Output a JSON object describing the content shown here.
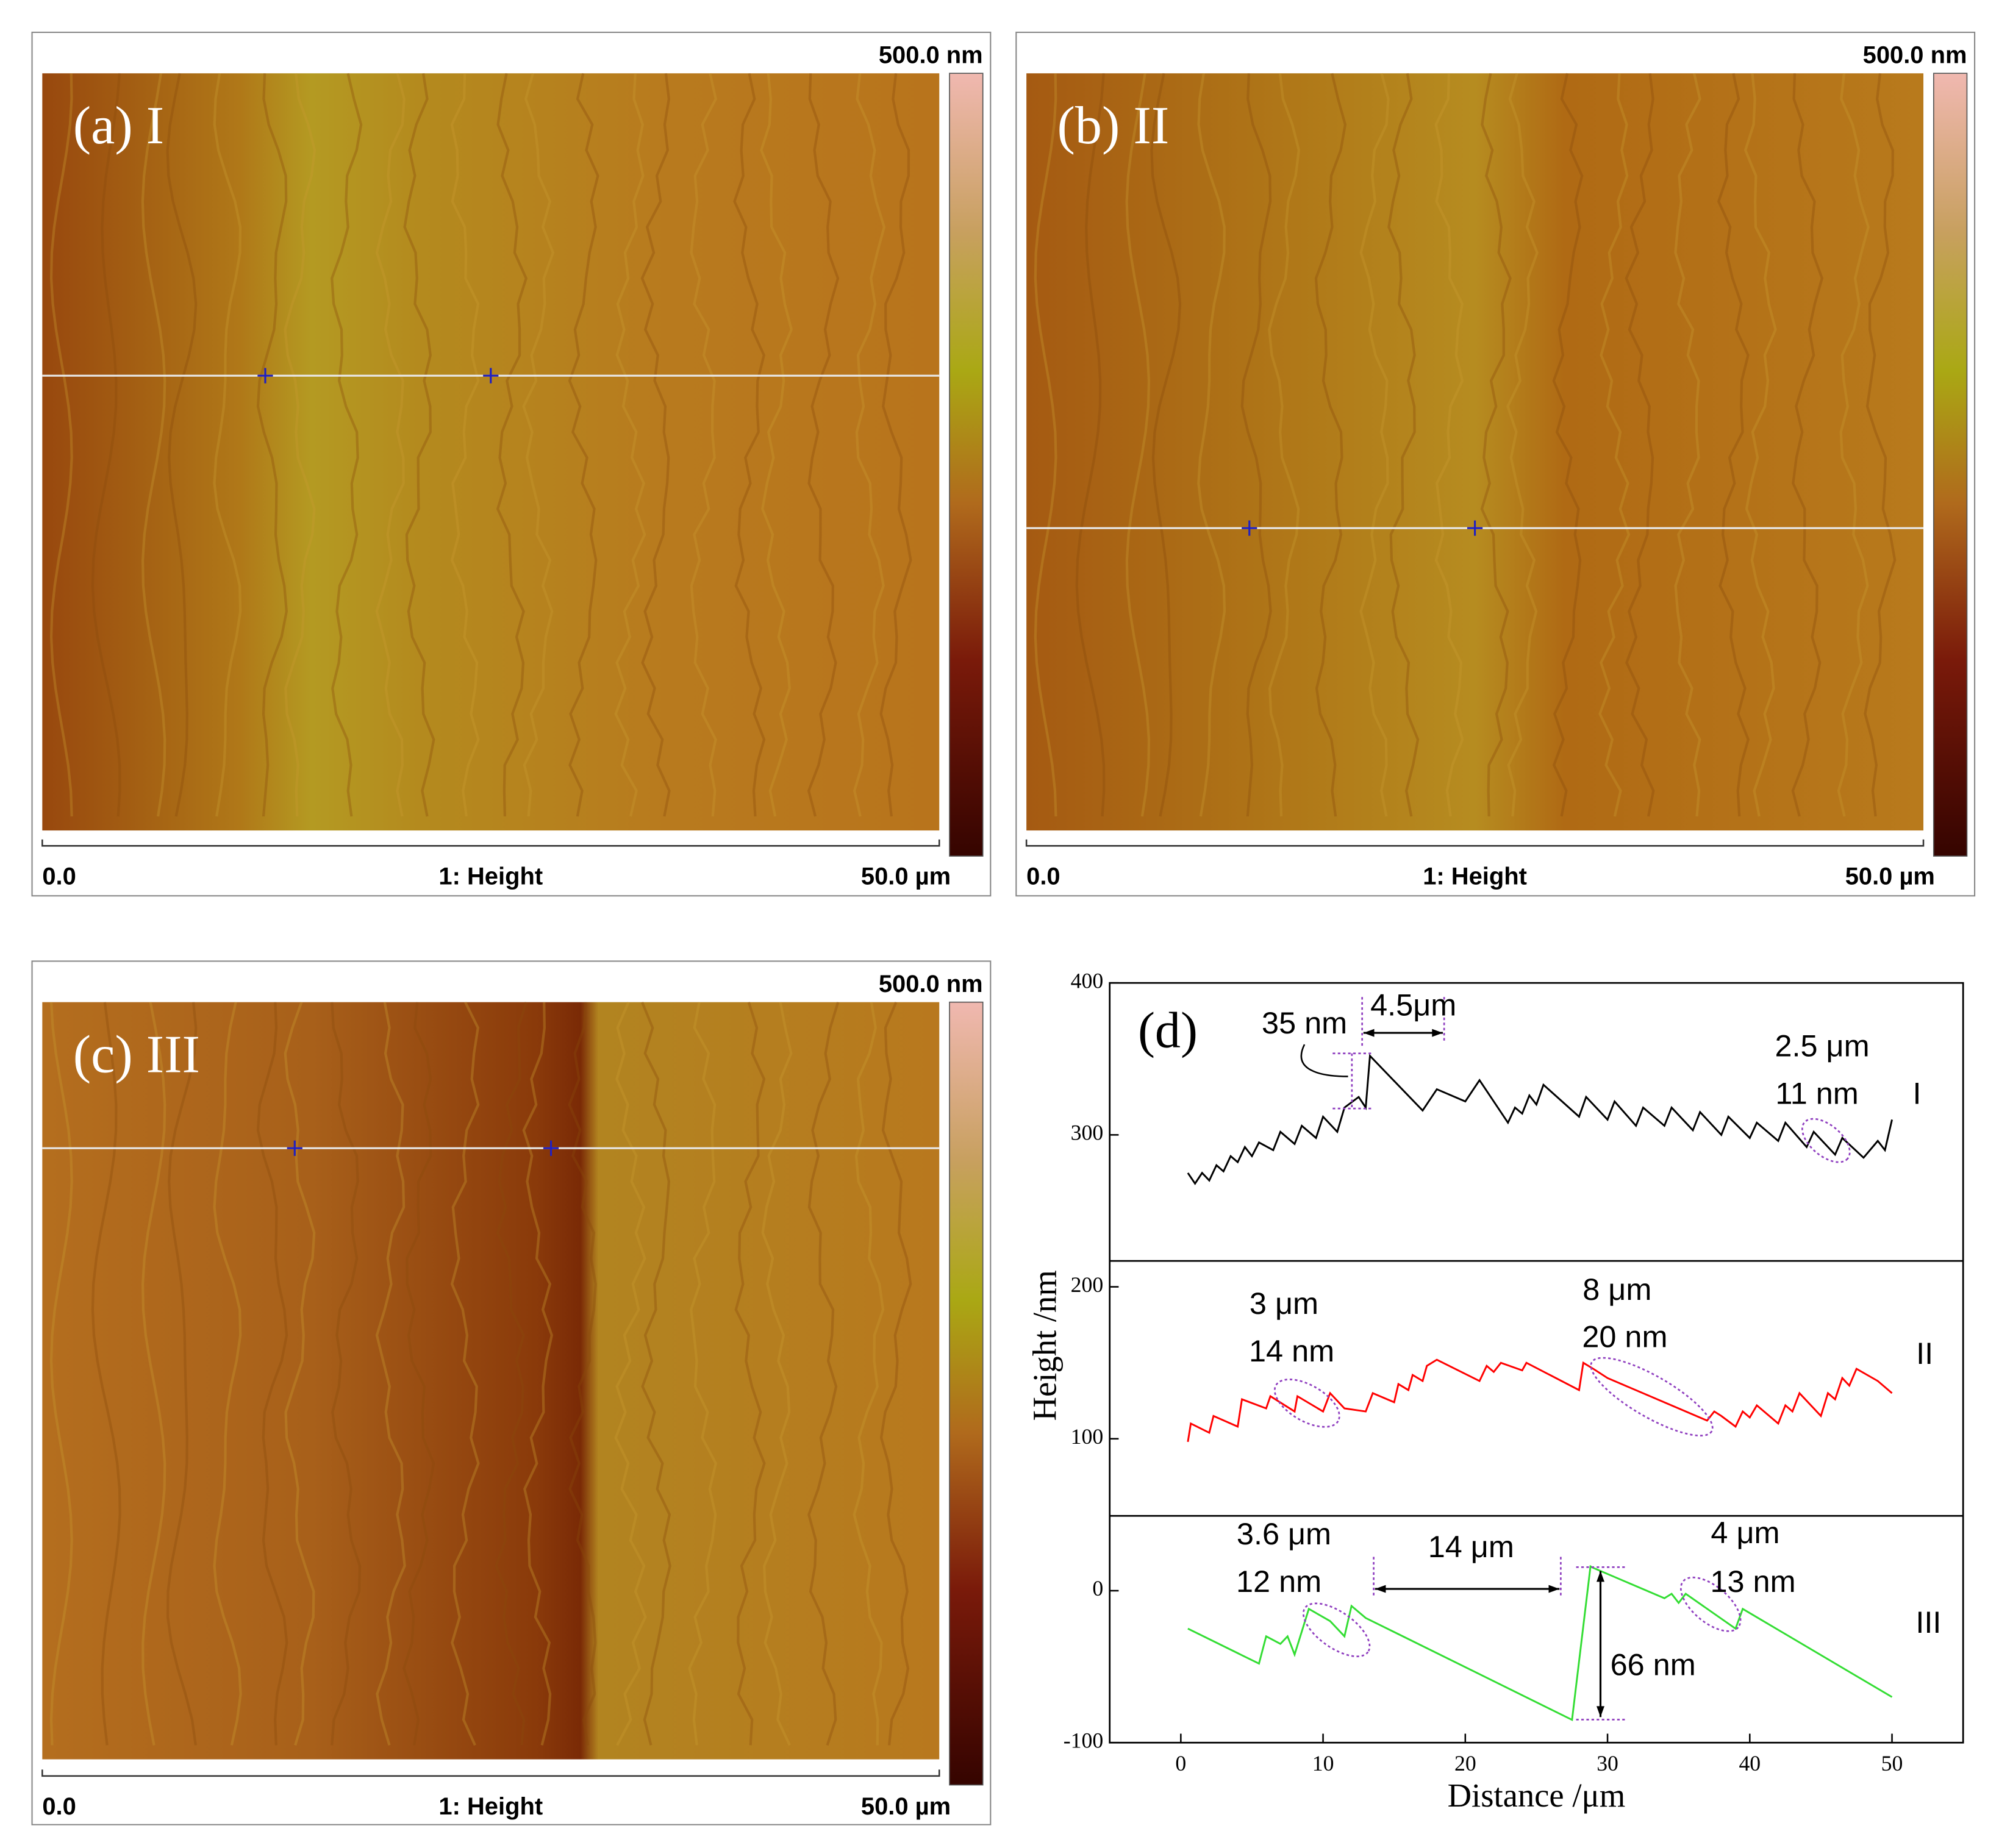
{
  "panels": [
    {
      "label": "(a) I",
      "scale_max": "500.0 nm",
      "x_start": "0.0",
      "channel": "1: Height",
      "x_end": "50.0 µm"
    },
    {
      "label": "(b) II",
      "scale_max": "500.0 nm",
      "x_start": "0.0",
      "channel": "1: Height",
      "x_end": "50.0 µm"
    },
    {
      "label": "(c) III",
      "scale_max": "500.0 nm",
      "x_start": "0.0",
      "channel": "1: Height",
      "x_end": "50.0 µm"
    }
  ],
  "chart_data": {
    "type": "line",
    "title": "(d)",
    "x_label": "Distance /μm",
    "y_label": "Height /nm",
    "xlim": [
      -5,
      55
    ],
    "xticks": [
      0,
      10,
      20,
      30,
      40,
      50
    ],
    "ylim": [
      -100,
      400
    ],
    "yticks": [
      -100,
      0,
      100,
      200,
      300,
      400
    ],
    "series": [
      {
        "name": "I",
        "color": "#000000",
        "x": [
          0.5,
          1,
          1.5,
          2,
          2.5,
          3,
          3.5,
          4,
          4.5,
          5,
          5.5,
          6.5,
          7,
          8,
          8.5,
          9.5,
          10,
          11,
          11.5,
          12.5,
          13,
          13.3,
          17,
          18,
          20,
          21,
          23,
          23.5,
          24,
          24.5,
          25,
          25.5,
          28,
          28.5,
          30,
          30.5,
          32,
          32.5,
          34,
          34.5,
          36,
          36.5,
          38,
          38.5,
          40,
          40.5,
          42,
          42.5,
          44,
          44.5,
          46,
          46.5,
          48,
          49,
          49.5,
          50
        ],
        "values": [
          275,
          268,
          275,
          270,
          280,
          276,
          286,
          282,
          292,
          286,
          295,
          290,
          302,
          294,
          306,
          298,
          312,
          302,
          318,
          325,
          318,
          352,
          316,
          330,
          322,
          336,
          308,
          318,
          314,
          326,
          320,
          333,
          312,
          325,
          310,
          322,
          306,
          318,
          306,
          318,
          303,
          315,
          300,
          312,
          298,
          308,
          296,
          308,
          292,
          302,
          287,
          298,
          285,
          296,
          290,
          310
        ]
      },
      {
        "name": "II",
        "color": "#ff0000",
        "x": [
          0.5,
          0.7,
          2,
          2.3,
          4,
          4.3,
          6,
          6.3,
          8,
          8.2,
          10,
          10.5,
          11.5,
          13,
          13.5,
          15,
          15.3,
          16,
          16.3,
          17,
          17.3,
          18,
          21,
          21.5,
          22,
          22.5,
          24,
          24.3,
          28,
          28.3,
          29,
          30,
          37,
          37.5,
          38,
          39,
          39.5,
          40,
          40.5,
          42,
          42.5,
          43,
          43.5,
          45,
          45.5,
          46,
          46.5,
          47,
          47.5,
          49,
          50
        ],
        "values": [
          98,
          110,
          104,
          115,
          108,
          126,
          120,
          128,
          118,
          128,
          118,
          130,
          120,
          118,
          130,
          124,
          136,
          132,
          142,
          138,
          148,
          152,
          138,
          148,
          144,
          150,
          145,
          150,
          132,
          150,
          146,
          140,
          112,
          118,
          115,
          108,
          118,
          114,
          122,
          110,
          122,
          118,
          130,
          115,
          130,
          126,
          140,
          135,
          146,
          138,
          130
        ]
      },
      {
        "name": "III",
        "color": "#33dd33",
        "x": [
          0.5,
          5.5,
          6,
          7,
          7.5,
          8,
          9,
          10.5,
          11.5,
          12,
          13,
          27.5,
          28.8,
          29,
          34,
          34.5,
          35,
          35.5,
          39,
          39.5,
          50
        ],
        "values": [
          -25,
          -48,
          -30,
          -35,
          -30,
          -42,
          -12,
          -20,
          -30,
          -10,
          -18,
          -85,
          16,
          15,
          -5,
          -2,
          -8,
          -2,
          -25,
          -12,
          -70
        ]
      }
    ],
    "annotations": [
      "35 nm",
      "4.5μm",
      "2.5 μm",
      "11 nm",
      "3 μm",
      "14 nm",
      "8 μm",
      "20 nm",
      "3.6 μm",
      "12 nm",
      "14 μm",
      "4 μm",
      "13 nm",
      "66 nm"
    ]
  }
}
